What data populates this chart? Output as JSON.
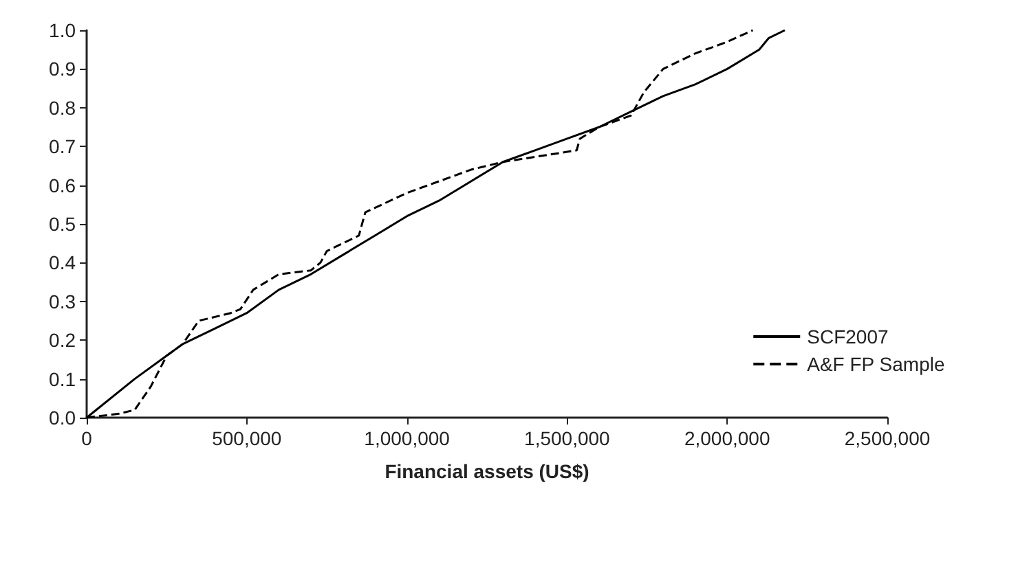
{
  "chart_data": {
    "type": "line",
    "xlabel": "Financial assets (US$)",
    "xlim": [
      0,
      2500000
    ],
    "xticks": [
      {
        "value": 0,
        "label": "0"
      },
      {
        "value": 500000,
        "label": "500,000"
      },
      {
        "value": 1000000,
        "label": "1,000,000"
      },
      {
        "value": 1500000,
        "label": "1,500,000"
      },
      {
        "value": 2000000,
        "label": "2,000,000"
      },
      {
        "value": 2500000,
        "label": "2,500,000"
      }
    ],
    "ylim": [
      0,
      1
    ],
    "yticks": [
      {
        "value": 0,
        "label": "0.0"
      },
      0.1,
      0.2,
      0.3,
      0.4,
      0.5,
      0.6,
      0.7,
      0.8,
      0.9,
      {
        "value": 1,
        "label": "1.0"
      }
    ],
    "grid": false,
    "legend": "right",
    "marker": "none",
    "series": [
      {
        "name": "SCF2007",
        "color": "#000000",
        "line_style": "solid",
        "x": [
          0,
          150000,
          250000,
          300000,
          400000,
          500000,
          600000,
          700000,
          800000,
          900000,
          1000000,
          1100000,
          1200000,
          1300000,
          1400000,
          1500000,
          1600000,
          1700000,
          1800000,
          1900000,
          2000000,
          2100000,
          2130000,
          2180000
        ],
        "values": [
          0,
          0.1,
          0.16,
          0.19,
          0.23,
          0.27,
          0.33,
          0.37,
          0.42,
          0.47,
          0.52,
          0.56,
          0.61,
          0.66,
          0.69,
          0.72,
          0.75,
          0.79,
          0.83,
          0.86,
          0.9,
          0.95,
          0.98,
          1
        ]
      },
      {
        "name": "A&F FP Sample",
        "color": "#000000",
        "line_style": "dashed",
        "x": [
          0,
          100000,
          150000,
          200000,
          250000,
          300000,
          350000,
          450000,
          480000,
          520000,
          600000,
          700000,
          730000,
          750000,
          850000,
          870000,
          1000000,
          1200000,
          1300000,
          1530000,
          1540000,
          1600000,
          1700000,
          1740000,
          1800000,
          1900000,
          2000000,
          2080000
        ],
        "values": [
          0,
          0.01,
          0.02,
          0.08,
          0.16,
          0.19,
          0.25,
          0.27,
          0.28,
          0.33,
          0.37,
          0.38,
          0.4,
          0.43,
          0.47,
          0.53,
          0.58,
          0.64,
          0.66,
          0.69,
          0.72,
          0.75,
          0.78,
          0.84,
          0.9,
          0.94,
          0.97,
          1
        ]
      }
    ]
  }
}
